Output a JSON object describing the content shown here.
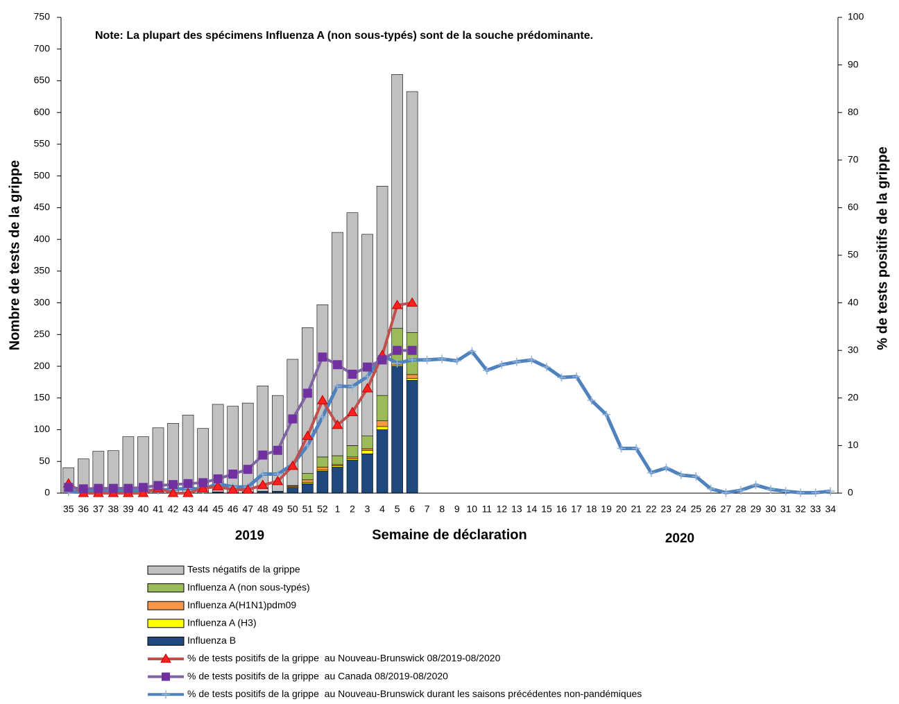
{
  "chart_data": {
    "type": "bar",
    "note": "Note: La plupart des spécimens Influenza A (non sous-typés) sont de la souche prédominante.",
    "y_label": "Nombre de tests de la grippe",
    "y2_label": "% de tests positifs de la grippe",
    "x_label": "Semaine de déclaration",
    "annotations": [
      "2019",
      "2020"
    ],
    "categories": [
      "35",
      "36",
      "37",
      "38",
      "39",
      "40",
      "41",
      "42",
      "43",
      "44",
      "45",
      "46",
      "47",
      "48",
      "49",
      "50",
      "51",
      "52",
      "1",
      "2",
      "3",
      "4",
      "5",
      "6",
      "7",
      "8",
      "9",
      "10",
      "11",
      "12",
      "13",
      "14",
      "15",
      "16",
      "17",
      "18",
      "19",
      "20",
      "21",
      "22",
      "23",
      "24",
      "25",
      "26",
      "27",
      "28",
      "29",
      "30",
      "31",
      "32",
      "33",
      "34"
    ],
    "ylim": [
      0,
      750
    ],
    "yticks": [
      0,
      50,
      100,
      150,
      200,
      250,
      300,
      350,
      400,
      450,
      500,
      550,
      600,
      650,
      700,
      750
    ],
    "y2lim": [
      0,
      100
    ],
    "y2ticks": [
      0,
      10,
      20,
      30,
      40,
      50,
      60,
      70,
      80,
      90,
      100
    ],
    "series": [
      {
        "name": "Tests négatifs de la grippe",
        "type": "bar",
        "color": "#c0c0c0",
        "values": [
          40,
          54,
          66,
          67,
          89,
          89,
          103,
          110,
          123,
          102,
          138,
          136,
          140,
          166,
          151,
          199,
          230,
          240,
          352,
          367,
          318,
          330,
          400,
          380,
          null,
          null,
          null,
          null,
          null,
          null,
          null,
          null,
          null,
          null,
          null,
          null,
          null,
          null,
          null,
          null,
          null,
          null,
          null,
          null,
          null,
          null,
          null,
          null,
          null,
          null,
          null,
          null
        ]
      },
      {
        "name": "Influenza A (non sous-typés)",
        "type": "bar",
        "color": "#9bbb59",
        "values": [
          0,
          0,
          0,
          0,
          0,
          0,
          0,
          0,
          0,
          0,
          0,
          0,
          0,
          0,
          0,
          1,
          10,
          16,
          14,
          18,
          20,
          40,
          52,
          66,
          null,
          null,
          null,
          null,
          null,
          null,
          null,
          null,
          null,
          null,
          null,
          null,
          null,
          null,
          null,
          null,
          null,
          null,
          null,
          null,
          null,
          null,
          null,
          null,
          null,
          null,
          null,
          null
        ]
      },
      {
        "name": "Influenza A(H1N1)pdm09",
        "type": "bar",
        "color": "#f79646",
        "values": [
          0,
          0,
          0,
          0,
          0,
          0,
          0,
          0,
          0,
          0,
          0,
          0,
          0,
          0,
          0,
          2,
          4,
          4,
          2,
          3,
          3,
          9,
          6,
          6,
          null,
          null,
          null,
          null,
          null,
          null,
          null,
          null,
          null,
          null,
          null,
          null,
          null,
          null,
          null,
          null,
          null,
          null,
          null,
          null,
          null,
          null,
          null,
          null,
          null,
          null,
          null,
          null
        ]
      },
      {
        "name": "Influenza A (H3)",
        "type": "bar",
        "color": "#ffff00",
        "values": [
          0,
          0,
          0,
          0,
          0,
          0,
          0,
          0,
          0,
          0,
          0,
          0,
          0,
          0,
          0,
          1,
          2,
          2,
          2,
          2,
          5,
          5,
          2,
          3,
          null,
          null,
          null,
          null,
          null,
          null,
          null,
          null,
          null,
          null,
          null,
          null,
          null,
          null,
          null,
          null,
          null,
          null,
          null,
          null,
          null,
          null,
          null,
          null,
          null,
          null,
          null,
          null
        ]
      },
      {
        "name": "Influenza B",
        "type": "bar",
        "color": "#1f497d",
        "values": [
          0,
          0,
          0,
          0,
          0,
          0,
          0,
          0,
          0,
          0,
          2,
          1,
          2,
          3,
          3,
          8,
          15,
          35,
          41,
          52,
          62,
          100,
          200,
          178,
          null,
          null,
          null,
          null,
          null,
          null,
          null,
          null,
          null,
          null,
          null,
          null,
          null,
          null,
          null,
          null,
          null,
          null,
          null,
          null,
          null,
          null,
          null,
          null,
          null,
          null,
          null,
          null
        ]
      },
      {
        "name": "% de tests positifs de la grippe  au Nouveau-Brunswick 08/2019-08/2020",
        "type": "line",
        "axis": "y2",
        "marker": "triangle",
        "color": "#c0504d",
        "marker_color": "#ff2020",
        "values": [
          2,
          0,
          0,
          0,
          0,
          0,
          1,
          0,
          0,
          1,
          1.4,
          0.7,
          0.7,
          1.7,
          2.5,
          5.7,
          12,
          19.5,
          14.3,
          17,
          22,
          29,
          39.5,
          40,
          null,
          null,
          null,
          null,
          null,
          null,
          null,
          null,
          null,
          null,
          null,
          null,
          null,
          null,
          null,
          null,
          null,
          null,
          null,
          null,
          null,
          null,
          null,
          null,
          null,
          null,
          null,
          null
        ]
      },
      {
        "name": "% de tests positifs de la grippe  au Canada 08/2019-08/2020",
        "type": "line",
        "axis": "y2",
        "marker": "square",
        "color": "#8064a2",
        "marker_color": "#7030a0",
        "values": [
          1.2,
          0.9,
          1,
          1,
          1,
          1.2,
          1.6,
          1.8,
          2,
          2.2,
          3,
          4,
          5,
          8,
          9,
          15.6,
          21,
          28.6,
          27,
          25,
          26.5,
          28,
          30,
          30,
          null,
          null,
          null,
          null,
          null,
          null,
          null,
          null,
          null,
          null,
          null,
          null,
          null,
          null,
          null,
          null,
          null,
          null,
          null,
          null,
          null,
          null,
          null,
          null,
          null,
          null,
          null,
          null
        ]
      },
      {
        "name": "% de tests positifs de la grippe  au Nouveau-Brunswick durant les saisons précédentes non-pandémiques",
        "type": "line",
        "axis": "y2",
        "marker": "plus",
        "color": "#4f81bd",
        "marker_color": "#95b3d7",
        "values": [
          0.3,
          0.4,
          0.4,
          0.5,
          0.6,
          0.5,
          0.6,
          0.8,
          1,
          0.8,
          2,
          1.3,
          1.3,
          4,
          4,
          6,
          10,
          16,
          22.5,
          22.4,
          24.5,
          29,
          27.3,
          28,
          28,
          28.2,
          27.8,
          29.8,
          25.8,
          27,
          27.6,
          28,
          26.5,
          24.3,
          24.5,
          19.5,
          16.5,
          9.4,
          9.4,
          4.3,
          5.3,
          3.8,
          3.5,
          0.9,
          0.1,
          0.6,
          1.7,
          0.8,
          0.4,
          0.1,
          0.1,
          0.4
        ]
      }
    ]
  }
}
